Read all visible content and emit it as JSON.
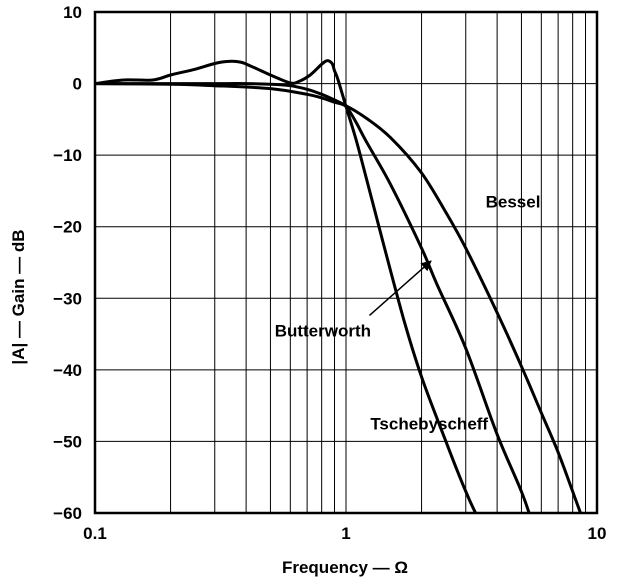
{
  "chart_data": {
    "type": "line",
    "title": "",
    "xlabel": "Frequency — Ω",
    "ylabel": "|A| — Gain — dB",
    "xscale": "log",
    "xlim": [
      0.1,
      10
    ],
    "ylim": [
      -60,
      10
    ],
    "grid": true,
    "xtick_labels": [
      "0.1",
      "1",
      "10"
    ],
    "ytick_labels": [
      "10",
      "0",
      "−10",
      "−20",
      "−30",
      "−40",
      "−50",
      "−60"
    ],
    "series": [
      {
        "name": "Tschebyscheff",
        "x": [
          0.1,
          0.13,
          0.17,
          0.2,
          0.25,
          0.3,
          0.34,
          0.38,
          0.42,
          0.5,
          0.6,
          0.65,
          0.72,
          0.8,
          0.84,
          0.88,
          0.9,
          0.93,
          1.0,
          1.1,
          1.2,
          1.4,
          1.7,
          2.0,
          2.5,
          3.0,
          3.4,
          3.6
        ],
        "y": [
          0,
          0.5,
          0.5,
          1.2,
          2.0,
          2.8,
          3.1,
          3.0,
          2.4,
          1.2,
          0.1,
          0.3,
          1.2,
          2.7,
          3.2,
          2.8,
          1.8,
          0.5,
          -3.2,
          -8,
          -13,
          -22,
          -33,
          -41,
          -50,
          -57,
          -61,
          -62
        ]
      },
      {
        "name": "Butterworth",
        "x": [
          0.1,
          0.2,
          0.3,
          0.4,
          0.5,
          0.6,
          0.7,
          0.8,
          0.9,
          1.0,
          1.1,
          1.2,
          1.5,
          2.0,
          2.3,
          3.0,
          4.0,
          5.0,
          5.6
        ],
        "y": [
          0,
          0,
          0,
          0,
          -0.1,
          -0.3,
          -0.8,
          -1.5,
          -2.3,
          -3.2,
          -5.5,
          -8,
          -14,
          -23,
          -28,
          -37,
          -49,
          -57,
          -62
        ]
      },
      {
        "name": "Bessel",
        "x": [
          0.1,
          0.2,
          0.3,
          0.5,
          0.7,
          0.8,
          0.9,
          1.0,
          1.2,
          1.5,
          2.0,
          2.5,
          3.0,
          4.0,
          5.0,
          6.0,
          7.0,
          8.0,
          8.8
        ],
        "y": [
          0,
          -0.1,
          -0.3,
          -0.7,
          -1.5,
          -2.0,
          -2.6,
          -3.1,
          -4.8,
          -7.5,
          -12.5,
          -18,
          -23,
          -32,
          -39.5,
          -46,
          -51.5,
          -57,
          -61
        ]
      }
    ],
    "annotations": [
      {
        "text": "Bessel",
        "x": 3.6,
        "y": -16.5
      },
      {
        "text": "Butterworth",
        "x": 0.52,
        "y": -34.5,
        "arrow_to": [
          2.18,
          -24.8
        ],
        "arrow_from": [
          1.24,
          -32.4
        ]
      },
      {
        "text": "Tschebyscheff",
        "x": 1.25,
        "y": -47.5
      }
    ]
  }
}
